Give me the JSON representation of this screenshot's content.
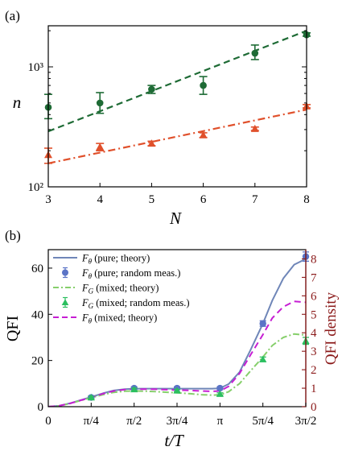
{
  "chart_data": [
    {
      "panel_label": "(a)",
      "type": "scatter",
      "xlabel": "N",
      "ylabel": "n",
      "yscale": "log",
      "xlim": [
        3,
        8
      ],
      "ylim": [
        100,
        2200
      ],
      "x_ticks": [
        "3",
        "4",
        "5",
        "6",
        "7",
        "8"
      ],
      "y_ticks": [
        {
          "value": 100,
          "label": "10²"
        },
        {
          "value": 1000,
          "label": "10³"
        }
      ],
      "series": [
        {
          "color": "#1e6b35",
          "marker": "circle",
          "x": [
            3,
            4,
            5,
            6,
            7,
            8
          ],
          "y": [
            460,
            500,
            650,
            700,
            1300,
            1850
          ],
          "err_low": [
            370,
            410,
            600,
            590,
            1150,
            1800
          ],
          "err_high": [
            590,
            610,
            700,
            830,
            1520,
            1920
          ],
          "fit": {
            "style": "dashed",
            "x": [
              3,
              8
            ],
            "y": [
              290,
              2000
            ]
          }
        },
        {
          "color": "#e0502b",
          "marker": "triangle",
          "x": [
            3,
            4,
            5,
            6,
            7,
            8
          ],
          "y": [
            185,
            215,
            230,
            270,
            305,
            470
          ],
          "err_low": [
            157,
            200,
            220,
            258,
            295,
            455
          ],
          "err_high": [
            210,
            230,
            240,
            282,
            315,
            485
          ],
          "fit": {
            "style": "dash-dot",
            "x": [
              3,
              8
            ],
            "y": [
              157,
              440
            ]
          }
        }
      ]
    },
    {
      "panel_label": "(b)",
      "type": "line",
      "xlabel": "t/T",
      "ylabel": "QFI",
      "ylabel_right": "QFI density",
      "xlim": [
        0,
        4.712
      ],
      "ylim": [
        0,
        68
      ],
      "ylim_right": [
        0,
        8.5
      ],
      "x_ticks": [
        {
          "value": 0,
          "label": "0"
        },
        {
          "value": 0.785,
          "label": "π/4"
        },
        {
          "value": 1.571,
          "label": "π/2"
        },
        {
          "value": 2.356,
          "label": "3π/4"
        },
        {
          "value": 3.142,
          "label": "π"
        },
        {
          "value": 3.927,
          "label": "5π/4"
        },
        {
          "value": 4.712,
          "label": "3π/2"
        }
      ],
      "y_ticks": [
        0,
        20,
        40,
        60
      ],
      "y_ticks_right": [
        0,
        1,
        2,
        3,
        4,
        5,
        6,
        7,
        8
      ],
      "legend": [
        {
          "script": "F",
          "sub": "θ",
          "text": " (pure; theory)",
          "kind": "solid",
          "color": "#6f86b8"
        },
        {
          "script": "F",
          "sub": "θ",
          "text": " (pure; random meas.)",
          "kind": "circle-err",
          "color": "#5b74c6"
        },
        {
          "script": "F",
          "sub": "G",
          "text": " (mixed; theory)",
          "kind": "dashdot",
          "color": "#86cf6b"
        },
        {
          "script": "F",
          "sub": "G",
          "text": " (mixed; random meas.)",
          "kind": "triangle-err",
          "color": "#2bbf5f"
        },
        {
          "script": "F",
          "sub": "θ",
          "text": " (mixed; theory)",
          "kind": "dashed",
          "color": "#c61ed3"
        }
      ],
      "series": [
        {
          "name": "pure; theory",
          "style": "solid",
          "color": "#6f86b8",
          "x": [
            0,
            0.2,
            0.4,
            0.6,
            0.785,
            1.0,
            1.2,
            1.4,
            1.571,
            1.8,
            2.0,
            2.2,
            2.356,
            2.6,
            2.8,
            3.0,
            3.142,
            3.3,
            3.5,
            3.7,
            3.927,
            4.1,
            4.3,
            4.5,
            4.712
          ],
          "y": [
            0,
            0.4,
            1.5,
            2.9,
            4.2,
            5.8,
            7.0,
            7.6,
            7.8,
            7.8,
            7.8,
            7.8,
            7.8,
            7.8,
            7.8,
            7.8,
            8.0,
            9.8,
            15.0,
            24.5,
            36.0,
            46.0,
            55.5,
            61.5,
            64.0
          ]
        },
        {
          "name": "pure; random meas.",
          "style": "markers",
          "color": "#5b74c6",
          "x": [
            0.785,
            1.571,
            2.356,
            3.142,
            3.927,
            4.712
          ],
          "y": [
            4.0,
            8.0,
            8.0,
            8.0,
            36.0,
            65.0
          ],
          "err": [
            0.6,
            0.6,
            0.6,
            0.6,
            1.2,
            2.0
          ]
        },
        {
          "name": "mixed; theory (G)",
          "style": "dash-dot",
          "color": "#86cf6b",
          "x": [
            0,
            0.2,
            0.4,
            0.6,
            0.785,
            1.0,
            1.2,
            1.4,
            1.571,
            1.8,
            2.0,
            2.2,
            2.356,
            2.6,
            2.8,
            3.0,
            3.142,
            3.3,
            3.5,
            3.7,
            3.927,
            4.1,
            4.3,
            4.5,
            4.712
          ],
          "y": [
            0,
            0.4,
            1.4,
            2.7,
            3.9,
            5.2,
            6.2,
            6.7,
            6.8,
            6.7,
            6.5,
            6.2,
            6.0,
            5.6,
            5.2,
            5.0,
            5.2,
            6.5,
            10.0,
            15.5,
            21.5,
            26.5,
            30.0,
            31.5,
            31.0
          ]
        },
        {
          "name": "mixed; random meas. (G)",
          "style": "markers",
          "color": "#2bbf5f",
          "x": [
            0.785,
            1.571,
            2.356,
            3.142,
            3.927,
            4.712
          ],
          "y": [
            4.0,
            7.5,
            7.0,
            5.5,
            20.5,
            28.5
          ],
          "err": [
            0.5,
            0.5,
            0.5,
            0.5,
            1.0,
            1.5
          ]
        },
        {
          "name": "mixed; theory (θ)",
          "style": "dashed",
          "color": "#c61ed3",
          "axis": "right",
          "x": [
            0,
            0.2,
            0.4,
            0.6,
            0.785,
            1.0,
            1.2,
            1.4,
            1.571,
            1.8,
            2.0,
            2.2,
            2.356,
            2.6,
            2.8,
            3.0,
            3.142,
            3.3,
            3.5,
            3.7,
            3.927,
            4.1,
            4.3,
            4.5,
            4.712
          ],
          "y": [
            0,
            0.05,
            0.18,
            0.35,
            0.5,
            0.7,
            0.85,
            0.93,
            0.95,
            0.95,
            0.94,
            0.92,
            0.9,
            0.88,
            0.85,
            0.83,
            0.85,
            1.1,
            1.8,
            2.8,
            3.9,
            4.8,
            5.4,
            5.7,
            5.65
          ]
        }
      ]
    }
  ]
}
